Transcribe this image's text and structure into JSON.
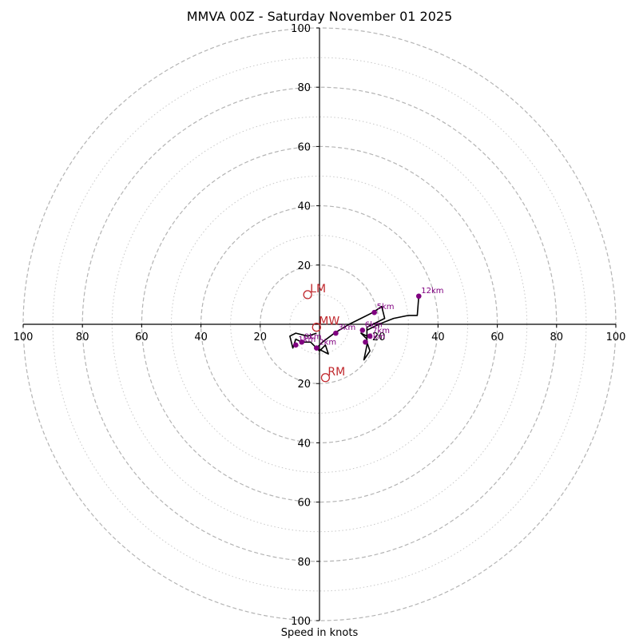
{
  "chart_data": {
    "type": "hodograph",
    "title": "MMVA 00Z - Saturday November 01 2025",
    "xlabel": "Speed in knots",
    "unit": "knots",
    "range": [
      -100,
      100
    ],
    "ring_step_major": 20,
    "ring_step_minor": 10,
    "x_tick_labels": [
      "100",
      "80",
      "60",
      "40",
      "20",
      "20",
      "40",
      "60",
      "80",
      "100"
    ],
    "x_tick_values": [
      -100,
      -80,
      -60,
      -40,
      -20,
      20,
      40,
      60,
      80,
      100
    ],
    "y_tick_labels": [
      "100",
      "80",
      "60",
      "40",
      "20",
      "20",
      "40",
      "60",
      "80",
      "100"
    ],
    "y_tick_values": [
      100,
      80,
      60,
      40,
      20,
      -20,
      -40,
      -60,
      -80,
      -100
    ],
    "trace": [
      {
        "u": -1,
        "v": -3
      },
      {
        "u": -4,
        "v": -4
      },
      {
        "u": -8,
        "v": -3
      },
      {
        "u": -10,
        "v": -4
      },
      {
        "u": -9,
        "v": -8
      },
      {
        "u": -8,
        "v": -5
      },
      {
        "u": -6,
        "v": -6
      },
      {
        "u": -3,
        "v": -6
      },
      {
        "u": 0,
        "v": -9
      },
      {
        "u": 2,
        "v": -7
      },
      {
        "u": 3,
        "v": -10
      },
      {
        "u": -1,
        "v": -8
      },
      {
        "u": 1,
        "v": -6
      },
      {
        "u": 5,
        "v": -3
      },
      {
        "u": 10,
        "v": 0
      },
      {
        "u": 14,
        "v": 2
      },
      {
        "u": 18,
        "v": 4
      },
      {
        "u": 21,
        "v": 6
      },
      {
        "u": 22,
        "v": 2
      },
      {
        "u": 18,
        "v": 0
      },
      {
        "u": 16,
        "v": -1
      },
      {
        "u": 16,
        "v": -4
      },
      {
        "u": 14,
        "v": -3
      },
      {
        "u": 16,
        "v": -5
      },
      {
        "u": 16,
        "v": -7
      },
      {
        "u": 15,
        "v": -12
      },
      {
        "u": 17,
        "v": -9
      },
      {
        "u": 16,
        "v": -6
      },
      {
        "u": 16,
        "v": -2
      },
      {
        "u": 18,
        "v": -1
      },
      {
        "u": 20,
        "v": 0
      },
      {
        "u": 25,
        "v": 2
      },
      {
        "u": 30,
        "v": 3
      },
      {
        "u": 33,
        "v": 3
      },
      {
        "u": 33.5,
        "v": 9.5
      }
    ],
    "height_markers": [
      {
        "label": "0km",
        "u": -6,
        "v": -6
      },
      {
        "label": "1km",
        "u": -8,
        "v": -7
      },
      {
        "label": "2km",
        "u": -1,
        "v": -8
      },
      {
        "label": "3km",
        "u": 5.5,
        "v": -3
      },
      {
        "label": "4km",
        "u": 15.5,
        "v": -6
      },
      {
        "label": "5km",
        "u": 18.5,
        "v": 4
      },
      {
        "label": "6km",
        "u": 14.5,
        "v": -2
      },
      {
        "label": "7km",
        "u": 17,
        "v": -4
      },
      {
        "label": "12km",
        "u": 33.5,
        "v": 9.5
      }
    ],
    "motion_markers": [
      {
        "label": "LM",
        "u": -4,
        "v": 10
      },
      {
        "label": "MW",
        "u": -1,
        "v": -1
      },
      {
        "label": "RM",
        "u": 2,
        "v": -18
      }
    ],
    "colors": {
      "trace": "#000000",
      "marker": "#800080",
      "motion": "#c0282d",
      "ring": "#b4b4b4",
      "ring_minor": "#c8c8c8",
      "axis": "#000000"
    }
  }
}
